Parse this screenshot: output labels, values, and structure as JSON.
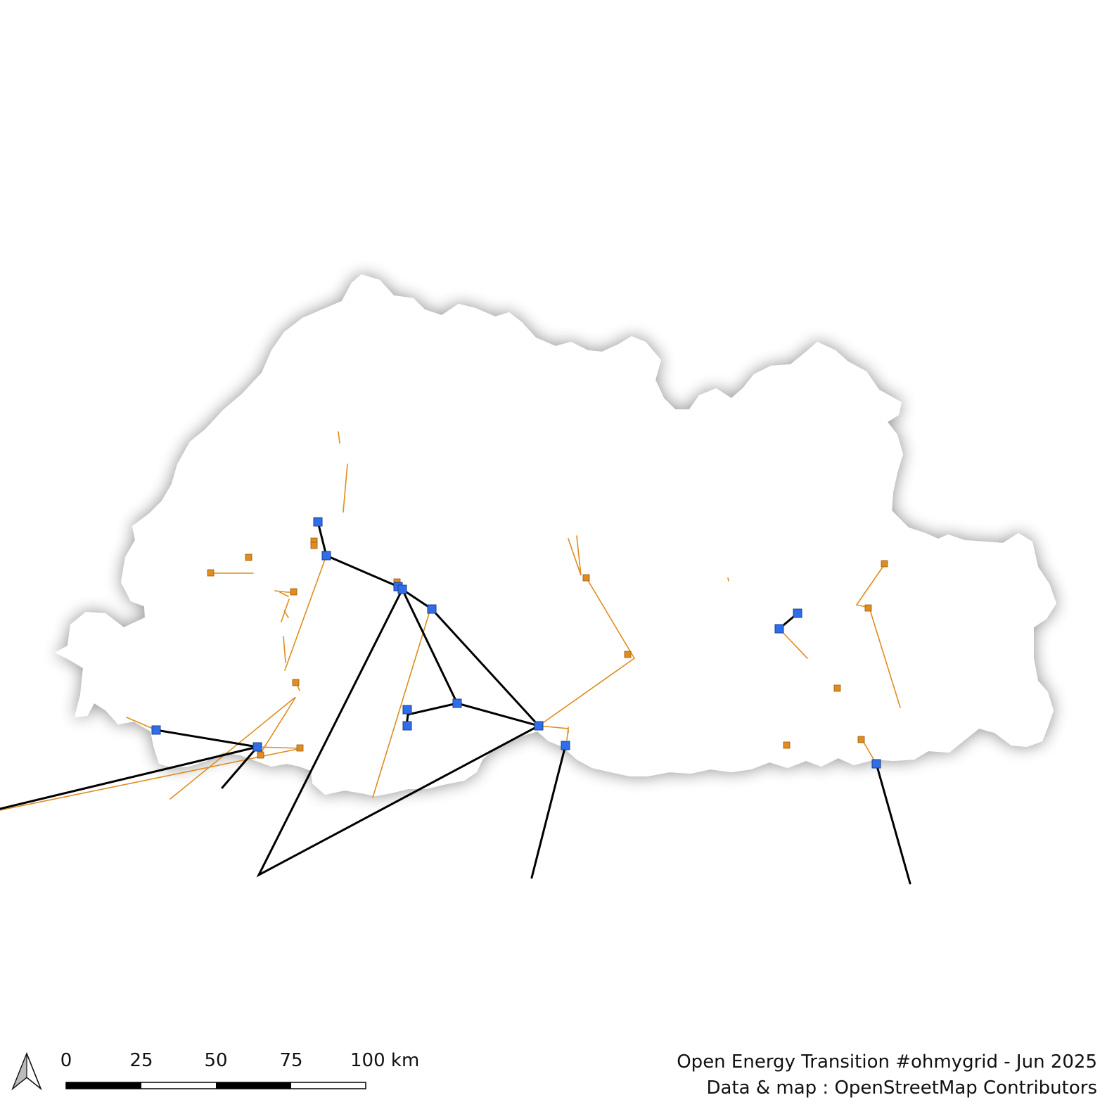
{
  "map": {
    "country_fill": "#ffffff",
    "shadow_color": "#999999",
    "layers": [
      {
        "name": "High-voltage lines",
        "color": "#000000"
      },
      {
        "name": "Medium-voltage lines",
        "color": "#e08c1e"
      },
      {
        "name": "HV substations",
        "color": "#2f6ee8"
      },
      {
        "name": "MV substations",
        "color": "#e08c1e"
      }
    ]
  },
  "scale_bar": {
    "ticks": [
      "0",
      "25",
      "50",
      "75",
      "100 km"
    ]
  },
  "north_arrow": {
    "icon": "north-arrow-icon"
  },
  "credits": {
    "line1": "Open Energy Transition #ohmygrid - Jun 2025",
    "line2": "Data & map : OpenStreetMap Contributors"
  }
}
